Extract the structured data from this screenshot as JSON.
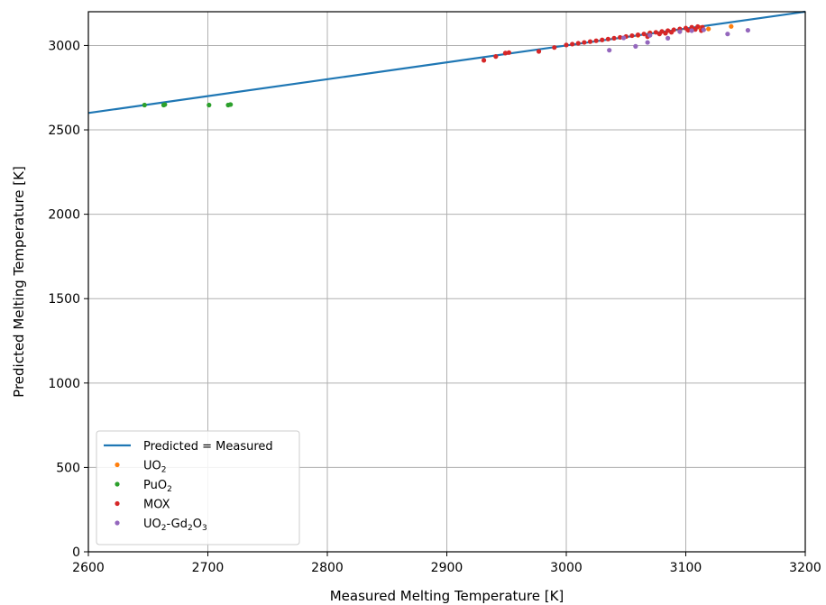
{
  "chart_data": {
    "type": "scatter",
    "title": "",
    "xlabel": "Measured Melting Temperature [K]",
    "ylabel": "Predicted Melting Temperature [K]",
    "xlim": [
      2600,
      3200
    ],
    "ylim": [
      0,
      3200
    ],
    "xticks": [
      2600,
      2700,
      2800,
      2900,
      3000,
      3100,
      3200
    ],
    "yticks": [
      0,
      500,
      1000,
      1500,
      2000,
      2500,
      3000
    ],
    "grid": true,
    "legend_position": "lower-left",
    "reference_line": {
      "name": "Predicted = Measured",
      "color": "#1f77b4",
      "points": [
        [
          2600,
          2600
        ],
        [
          3200,
          3200
        ]
      ]
    },
    "series": [
      {
        "name": "UO2",
        "label_parts": [
          [
            "UO",
            "normal"
          ],
          [
            "2",
            "sub"
          ]
        ],
        "color": "#ff7f0e",
        "points": [
          [
            3119,
            3098
          ],
          [
            3138,
            3113
          ],
          [
            3112,
            3105
          ],
          [
            3095,
            3090
          ],
          [
            3070,
            3075
          ],
          [
            3060,
            3060
          ]
        ]
      },
      {
        "name": "PuO2",
        "label_parts": [
          [
            "PuO",
            "normal"
          ],
          [
            "2",
            "sub"
          ]
        ],
        "color": "#2ca02c",
        "points": [
          [
            2647,
            2647
          ],
          [
            2663,
            2647
          ],
          [
            2664,
            2650
          ],
          [
            2701,
            2647
          ],
          [
            2717,
            2647
          ],
          [
            2719,
            2650
          ]
        ]
      },
      {
        "name": "MOX",
        "label_parts": [
          [
            "MOX",
            "normal"
          ]
        ],
        "color": "#d62728",
        "points": [
          [
            2931,
            2912
          ],
          [
            2941,
            2935
          ],
          [
            2949,
            2955
          ],
          [
            2952,
            2958
          ],
          [
            2977,
            2965
          ],
          [
            2990,
            2988
          ],
          [
            3000,
            3003
          ],
          [
            3005,
            3008
          ],
          [
            3010,
            3013
          ],
          [
            3015,
            3018
          ],
          [
            3020,
            3023
          ],
          [
            3025,
            3028
          ],
          [
            3030,
            3033
          ],
          [
            3035,
            3038
          ],
          [
            3040,
            3043
          ],
          [
            3045,
            3048
          ],
          [
            3050,
            3053
          ],
          [
            3055,
            3058
          ],
          [
            3060,
            3063
          ],
          [
            3065,
            3068
          ],
          [
            3068,
            3052
          ],
          [
            3070,
            3073
          ],
          [
            3075,
            3078
          ],
          [
            3078,
            3068
          ],
          [
            3080,
            3083
          ],
          [
            3083,
            3072
          ],
          [
            3085,
            3088
          ],
          [
            3088,
            3078
          ],
          [
            3090,
            3093
          ],
          [
            3095,
            3098
          ],
          [
            3100,
            3103
          ],
          [
            3102,
            3090
          ],
          [
            3105,
            3108
          ],
          [
            3108,
            3095
          ],
          [
            3110,
            3112
          ],
          [
            3113,
            3088
          ],
          [
            3114,
            3108
          ]
        ]
      },
      {
        "name": "UO2-Gd2O3",
        "label_parts": [
          [
            "UO",
            "normal"
          ],
          [
            "2",
            "sub"
          ],
          [
            "-Gd",
            "normal"
          ],
          [
            "2",
            "sub"
          ],
          [
            "O",
            "normal"
          ],
          [
            "3",
            "sub"
          ]
        ],
        "color": "#9467bd",
        "points": [
          [
            3036,
            2972
          ],
          [
            3058,
            2995
          ],
          [
            3068,
            3018
          ],
          [
            3085,
            3043
          ],
          [
            3135,
            3068
          ],
          [
            3152,
            3090
          ],
          [
            3070,
            3060
          ],
          [
            3095,
            3082
          ],
          [
            3105,
            3088
          ],
          [
            3115,
            3093
          ],
          [
            3048,
            3045
          ]
        ]
      }
    ]
  }
}
